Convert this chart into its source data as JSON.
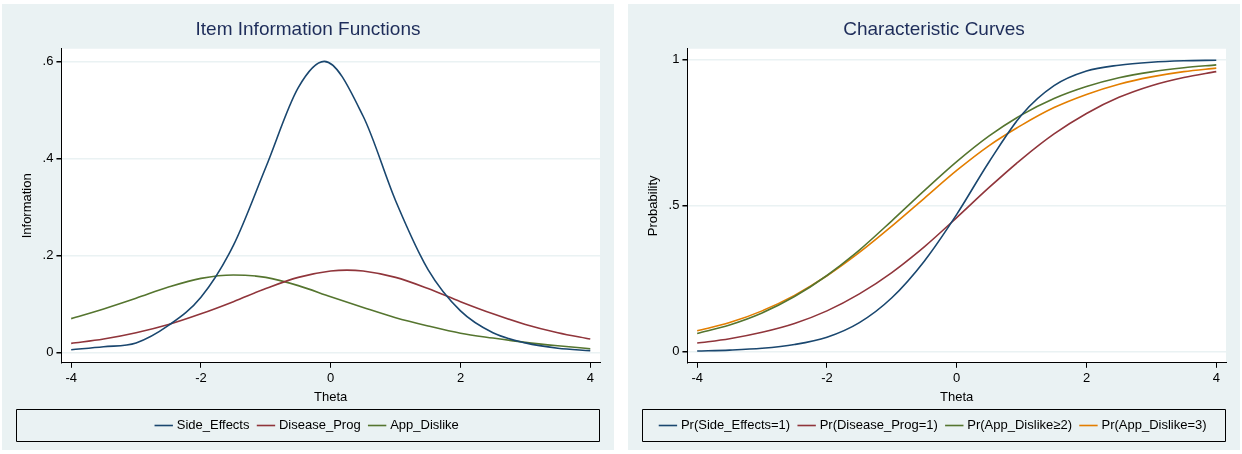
{
  "chart_data": [
    {
      "type": "line",
      "title": "Item Information Functions",
      "xlabel": "Theta",
      "ylabel": "Information",
      "x": [
        -4,
        -3.5,
        -3,
        -2.5,
        -2,
        -1.5,
        -1,
        -0.5,
        0,
        0.5,
        1,
        1.5,
        2,
        2.5,
        3,
        3.5,
        4
      ],
      "series": [
        {
          "name": "Side_Effects",
          "color": "#1a476f",
          "x": [
            -4,
            -3.5,
            -3,
            -2.5,
            -2,
            -1.5,
            -1,
            -0.5,
            -0.1,
            0.5,
            1,
            1.5,
            2,
            2.5,
            3,
            3.5,
            4
          ],
          "values": [
            0.006,
            0.012,
            0.02,
            0.056,
            0.114,
            0.221,
            0.382,
            0.546,
            0.6,
            0.487,
            0.313,
            0.171,
            0.086,
            0.041,
            0.02,
            0.009,
            0.004
          ]
        },
        {
          "name": "Disease_Prog",
          "color": "#90353b",
          "x": [
            -4,
            -3.5,
            -3,
            -2.5,
            -2,
            -1.5,
            -1,
            -0.5,
            0,
            0.25,
            0.5,
            1,
            1.5,
            2,
            2.5,
            3,
            3.5,
            4
          ],
          "values": [
            0.019,
            0.028,
            0.041,
            0.058,
            0.08,
            0.105,
            0.132,
            0.155,
            0.168,
            0.17,
            0.168,
            0.155,
            0.132,
            0.105,
            0.08,
            0.058,
            0.041,
            0.028
          ]
        },
        {
          "name": "App_Dislike",
          "color": "#55752f",
          "values": [
            0.07,
            0.09,
            0.112,
            0.135,
            0.153,
            0.16,
            0.155,
            0.138,
            0.115,
            0.093,
            0.072,
            0.055,
            0.04,
            0.03,
            0.021,
            0.014,
            0.008
          ]
        }
      ],
      "xlim": [
        -4.15,
        4.15
      ],
      "xticks": [
        -4,
        -2,
        0,
        2,
        4
      ],
      "ylim": [
        -0.021,
        0.626
      ],
      "yticks": [
        {
          "value": 0,
          "label": "0"
        },
        {
          "value": 0.2,
          "label": ".2"
        },
        {
          "value": 0.4,
          "label": ".4"
        },
        {
          "value": 0.6,
          "label": ".6"
        }
      ],
      "grid": "y",
      "legend": "bottom"
    },
    {
      "type": "line",
      "title": "Characteristic Curves",
      "xlabel": "Theta",
      "ylabel": "Probability",
      "x": [
        -4,
        -3.5,
        -3,
        -2.5,
        -2,
        -1.5,
        -1,
        -0.5,
        0,
        0.5,
        1,
        1.5,
        2,
        2.5,
        3,
        3.5,
        4
      ],
      "series": [
        {
          "name": "Pr(Side_Effects=1)",
          "color": "#1a476f",
          "values": [
            0.003,
            0.006,
            0.012,
            0.025,
            0.05,
            0.1,
            0.185,
            0.31,
            0.47,
            0.65,
            0.81,
            0.91,
            0.96,
            0.98,
            0.99,
            0.995,
            0.997
          ]
        },
        {
          "name": "Pr(Disease_Prog=1)",
          "color": "#90353b",
          "values": [
            0.03,
            0.045,
            0.067,
            0.097,
            0.14,
            0.198,
            0.271,
            0.359,
            0.459,
            0.562,
            0.659,
            0.745,
            0.815,
            0.87,
            0.91,
            0.938,
            0.958
          ]
        },
        {
          "name": "Pr(App_Dislike≥2)",
          "color": "#55752f",
          "values": [
            0.063,
            0.092,
            0.133,
            0.189,
            0.261,
            0.348,
            0.448,
            0.551,
            0.65,
            0.738,
            0.81,
            0.866,
            0.907,
            0.937,
            0.957,
            0.971,
            0.981
          ]
        },
        {
          "name": "Pr(App_Dislike=3)",
          "color": "#e37e00",
          "values": [
            0.072,
            0.1,
            0.14,
            0.193,
            0.26,
            0.34,
            0.43,
            0.525,
            0.62,
            0.705,
            0.775,
            0.835,
            0.88,
            0.915,
            0.94,
            0.958,
            0.97
          ]
        }
      ],
      "xlim": [
        -4.15,
        4.15
      ],
      "xticks": [
        -4,
        -2,
        0,
        2,
        4
      ],
      "ylim": [
        -0.0375,
        1.036
      ],
      "yticks": [
        {
          "value": 0,
          "label": "0"
        },
        {
          "value": 0.5,
          "label": ".5"
        },
        {
          "value": 1,
          "label": "1"
        }
      ],
      "grid": "y",
      "legend": "bottom"
    }
  ]
}
